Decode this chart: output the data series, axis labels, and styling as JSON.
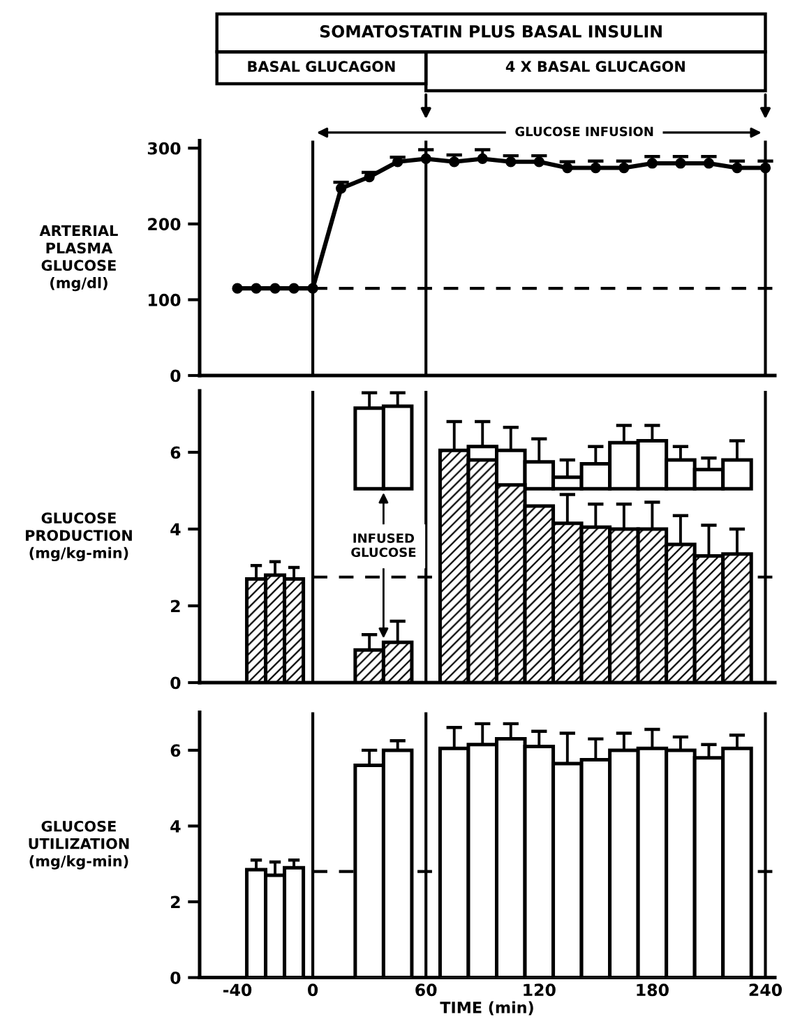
{
  "chart_data": [
    {
      "type": "line",
      "title": "SOMATOSTATIN PLUS BASAL INSULIN",
      "ylabel": "ARTERIAL\nPLASMA\nGLUCOSE\n(mg/dl)",
      "annotations": [
        "BASAL GLUCAGON",
        "4 X BASAL GLUCAGON",
        "GLUCOSE INFUSION"
      ],
      "x": [
        -40,
        -30,
        -20,
        -10,
        0,
        15,
        30,
        45,
        60,
        75,
        90,
        105,
        120,
        135,
        150,
        165,
        180,
        195,
        210,
        225,
        240
      ],
      "series": [
        {
          "color": "#000000",
          "values": [
            115,
            115,
            115,
            115,
            115,
            247,
            262,
            282,
            286,
            282,
            286,
            282,
            282,
            274,
            274,
            274,
            280,
            280,
            280,
            274,
            274
          ],
          "errors": [
            null,
            null,
            null,
            null,
            null,
            [
              247,
              255
            ],
            [
              262,
              268
            ],
            [
              282,
              288
            ],
            [
              286,
              298
            ],
            [
              282,
              291
            ],
            [
              286,
              298
            ],
            [
              282,
              290
            ],
            [
              282,
              290
            ],
            [
              274,
              282
            ],
            [
              274,
              283
            ],
            [
              274,
              283
            ],
            [
              280,
              289
            ],
            [
              280,
              289
            ],
            [
              280,
              289
            ],
            [
              274,
              283
            ],
            [
              274,
              283
            ]
          ]
        }
      ],
      "marker": "circle",
      "line_style": "solid",
      "xlim": [
        -60,
        245
      ],
      "ylim": [
        0,
        310
      ],
      "yticks": [
        0,
        100,
        200,
        300
      ],
      "tick_labels": "y",
      "grid": false,
      "legend": false,
      "ref_lines": [
        {
          "axis": "x",
          "value": 0,
          "color": "#000000",
          "line_style": "solid"
        },
        {
          "axis": "x",
          "value": 60,
          "color": "#000000",
          "line_style": "solid"
        },
        {
          "axis": "x",
          "value": 240,
          "color": "#000000",
          "line_style": "solid"
        },
        {
          "axis": "y",
          "value": 115,
          "color": "#000000",
          "line_style": "dashed"
        }
      ]
    },
    {
      "type": "bar",
      "ylabel": "GLUCOSE\nPRODUCTION\n(mg/kg-min)",
      "annotations": [
        "INFUSED\nGLUCOSE"
      ],
      "series": [
        {
          "color": "#000000",
          "x": [
            -30,
            -20,
            -10,
            30,
            45,
            75,
            90,
            105,
            120,
            135,
            150,
            165,
            180,
            195,
            210,
            225
          ],
          "values": [
            2.7,
            2.8,
            2.7,
            0.85,
            1.05,
            6.05,
            5.8,
            5.15,
            4.6,
            4.15,
            4.05,
            4.0,
            4.0,
            3.6,
            3.3,
            3.35
          ],
          "errors": [
            [
              2.7,
              3.05
            ],
            [
              2.8,
              3.15
            ],
            [
              2.7,
              3.0
            ],
            [
              0.85,
              1.25
            ],
            [
              1.05,
              1.6
            ],
            [
              6.05,
              6.8
            ],
            null,
            null,
            null,
            [
              4.15,
              4.9
            ],
            [
              4.05,
              4.65
            ],
            [
              4.0,
              4.65
            ],
            [
              4.0,
              4.7
            ],
            [
              3.6,
              4.35
            ],
            [
              3.3,
              4.1
            ],
            [
              3.35,
              4.0
            ]
          ]
        },
        {
          "color": "#ffffff",
          "x": [
            30,
            45,
            75,
            90,
            105,
            120,
            135,
            150,
            165,
            180,
            195,
            210,
            225
          ],
          "base": [
            5.05,
            5.05,
            null,
            5.05,
            5.05,
            5.05,
            5.05,
            5.05,
            5.05,
            5.05,
            5.05,
            5.05,
            5.05
          ],
          "values": [
            2.1,
            2.15,
            null,
            1.1,
            1.0,
            0.7,
            0.3,
            0.65,
            1.2,
            1.25,
            0.75,
            0.5,
            0.75
          ],
          "errors": [
            [
              7.15,
              7.55
            ],
            [
              7.2,
              7.55
            ],
            null,
            [
              6.15,
              6.8
            ],
            [
              6.05,
              6.65
            ],
            [
              5.75,
              6.35
            ],
            [
              5.35,
              5.8
            ],
            [
              5.7,
              6.15
            ],
            [
              6.25,
              6.7
            ],
            [
              6.3,
              6.7
            ],
            [
              5.8,
              6.15
            ],
            [
              5.55,
              5.85
            ],
            [
              5.8,
              6.3
            ]
          ]
        }
      ],
      "xlim": [
        -60,
        245
      ],
      "ylim": [
        0,
        7.6
      ],
      "yticks": [
        0,
        2,
        4,
        6
      ],
      "tick_labels": "y",
      "grid": false,
      "legend": false,
      "ref_lines": [
        {
          "axis": "x",
          "value": 0,
          "color": "#000000",
          "line_style": "solid"
        },
        {
          "axis": "x",
          "value": 60,
          "color": "#000000",
          "line_style": "solid"
        },
        {
          "axis": "x",
          "value": 240,
          "color": "#000000",
          "line_style": "solid"
        },
        {
          "axis": "y",
          "value": 2.75,
          "color": "#000000",
          "line_style": "dashed"
        }
      ]
    },
    {
      "type": "bar",
      "ylabel": "GLUCOSE\nUTILIZATION\n(mg/kg-min)",
      "xlabel": "TIME (min)",
      "series": [
        {
          "color": "#ffffff",
          "x": [
            -30,
            -20,
            -10,
            30,
            45,
            75,
            90,
            105,
            120,
            135,
            150,
            165,
            180,
            195,
            210,
            225
          ],
          "values": [
            2.85,
            2.7,
            2.9,
            5.6,
            6.0,
            6.05,
            6.15,
            6.3,
            6.1,
            5.65,
            5.75,
            6.0,
            6.05,
            6.0,
            5.8,
            6.05
          ],
          "errors": [
            [
              2.85,
              3.1
            ],
            [
              2.7,
              3.05
            ],
            [
              2.9,
              3.1
            ],
            [
              5.6,
              6.0
            ],
            [
              6.0,
              6.25
            ],
            [
              6.05,
              6.6
            ],
            [
              6.15,
              6.7
            ],
            [
              6.3,
              6.7
            ],
            [
              6.1,
              6.5
            ],
            [
              5.65,
              6.45
            ],
            [
              5.75,
              6.3
            ],
            [
              6.0,
              6.45
            ],
            [
              6.05,
              6.55
            ],
            [
              6.0,
              6.35
            ],
            [
              5.8,
              6.15
            ],
            [
              6.05,
              6.4
            ]
          ]
        }
      ],
      "xlim": [
        -60,
        245
      ],
      "xticks": [
        -40,
        0,
        60,
        120,
        180,
        240
      ],
      "ylim": [
        0,
        7
      ],
      "yticks": [
        0,
        2,
        4,
        6
      ],
      "grid": false,
      "legend": false,
      "ref_lines": [
        {
          "axis": "x",
          "value": 0,
          "color": "#000000",
          "line_style": "solid"
        },
        {
          "axis": "x",
          "value": 60,
          "color": "#000000",
          "line_style": "solid"
        },
        {
          "axis": "x",
          "value": 240,
          "color": "#000000",
          "line_style": "solid"
        },
        {
          "axis": "y",
          "value": 2.8,
          "color": "#000000",
          "line_style": "dashed"
        }
      ]
    }
  ]
}
